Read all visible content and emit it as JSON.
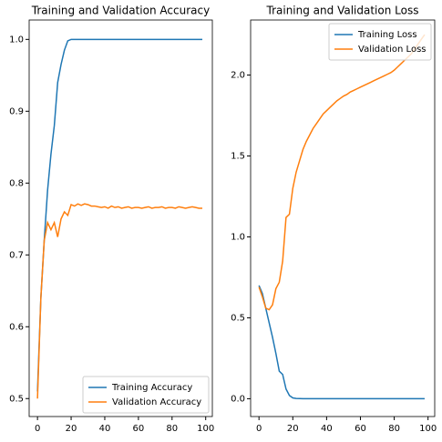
{
  "chart_data": [
    {
      "type": "line",
      "title": "Training and Validation Accuracy",
      "x": [
        0,
        2,
        4,
        6,
        8,
        10,
        12,
        14,
        16,
        18,
        20,
        22,
        24,
        26,
        28,
        30,
        32,
        34,
        36,
        38,
        40,
        42,
        44,
        46,
        48,
        50,
        52,
        54,
        56,
        58,
        60,
        62,
        64,
        66,
        68,
        70,
        72,
        74,
        76,
        78,
        80,
        82,
        84,
        86,
        88,
        90,
        92,
        94,
        96,
        98
      ],
      "series": [
        {
          "name": "Training Accuracy",
          "color": "#1f77b4",
          "values": [
            0.51,
            0.64,
            0.72,
            0.79,
            0.84,
            0.88,
            0.94,
            0.965,
            0.985,
            0.998,
            1.0,
            1.0,
            1.0,
            1.0,
            1.0,
            1.0,
            1.0,
            1.0,
            1.0,
            1.0,
            1.0,
            1.0,
            1.0,
            1.0,
            1.0,
            1.0,
            1.0,
            1.0,
            1.0,
            1.0,
            1.0,
            1.0,
            1.0,
            1.0,
            1.0,
            1.0,
            1.0,
            1.0,
            1.0,
            1.0,
            1.0,
            1.0,
            1.0,
            1.0,
            1.0,
            1.0,
            1.0,
            1.0,
            1.0,
            1.0
          ]
        },
        {
          "name": "Validation Accuracy",
          "color": "#ff7f0e",
          "values": [
            0.5,
            0.64,
            0.72,
            0.745,
            0.735,
            0.745,
            0.725,
            0.75,
            0.76,
            0.755,
            0.77,
            0.768,
            0.771,
            0.769,
            0.771,
            0.77,
            0.768,
            0.768,
            0.767,
            0.766,
            0.767,
            0.765,
            0.768,
            0.766,
            0.767,
            0.765,
            0.766,
            0.767,
            0.765,
            0.766,
            0.766,
            0.765,
            0.766,
            0.767,
            0.765,
            0.766,
            0.766,
            0.767,
            0.765,
            0.766,
            0.766,
            0.765,
            0.767,
            0.766,
            0.765,
            0.766,
            0.767,
            0.766,
            0.765,
            0.765
          ]
        }
      ],
      "xlim": [
        -4.95,
        103.95
      ],
      "xticks": [
        0,
        20,
        40,
        60,
        80,
        100
      ],
      "ylim": [
        0.475,
        1.027
      ],
      "yticks": [
        0.5,
        0.6,
        0.7,
        0.8,
        0.9,
        {
          "value": 1,
          "label": "1.0"
        }
      ],
      "legend": "lower right"
    },
    {
      "type": "line",
      "title": "Training and Validation Loss",
      "x": [
        0,
        2,
        4,
        6,
        8,
        10,
        12,
        14,
        16,
        18,
        20,
        22,
        24,
        26,
        28,
        30,
        32,
        34,
        36,
        38,
        40,
        42,
        44,
        46,
        48,
        50,
        52,
        54,
        56,
        58,
        60,
        62,
        64,
        66,
        68,
        70,
        72,
        74,
        76,
        78,
        80,
        82,
        84,
        86,
        88,
        90,
        92,
        94,
        96,
        98
      ],
      "series": [
        {
          "name": "Training Loss",
          "color": "#1f77b4",
          "values": [
            0.7,
            0.65,
            0.56,
            0.47,
            0.38,
            0.28,
            0.17,
            0.15,
            0.06,
            0.02,
            0.005,
            0.002,
            0.001,
            0,
            0,
            0,
            0,
            0,
            0,
            0,
            0,
            0,
            0,
            0,
            0,
            0,
            0,
            0,
            0,
            0,
            0,
            0,
            0,
            0,
            0,
            0,
            0,
            0,
            0,
            0,
            0,
            0,
            0,
            0,
            0,
            0,
            0,
            0,
            0,
            0
          ]
        },
        {
          "name": "Validation Loss",
          "color": "#ff7f0e",
          "values": [
            0.69,
            0.63,
            0.56,
            0.55,
            0.58,
            0.68,
            0.72,
            0.85,
            1.12,
            1.14,
            1.3,
            1.4,
            1.47,
            1.54,
            1.59,
            1.63,
            1.67,
            1.7,
            1.73,
            1.76,
            1.78,
            1.8,
            1.82,
            1.84,
            1.855,
            1.87,
            1.88,
            1.895,
            1.905,
            1.915,
            1.925,
            1.935,
            1.945,
            1.955,
            1.965,
            1.975,
            1.985,
            1.995,
            2.005,
            2.015,
            2.03,
            2.05,
            2.07,
            2.09,
            2.11,
            2.13,
            2.16,
            2.19,
            2.22,
            2.25
          ]
        }
      ],
      "xlim": [
        -4.95,
        103.95
      ],
      "xticks": [
        0,
        20,
        40,
        60,
        80,
        100
      ],
      "ylim": [
        -0.11,
        2.34
      ],
      "yticks": [
        {
          "value": 0,
          "label": "0.0"
        },
        0.5,
        {
          "value": 1,
          "label": "1.0"
        },
        1.5,
        {
          "value": 2,
          "label": "2.0"
        }
      ],
      "legend": "upper right"
    }
  ]
}
